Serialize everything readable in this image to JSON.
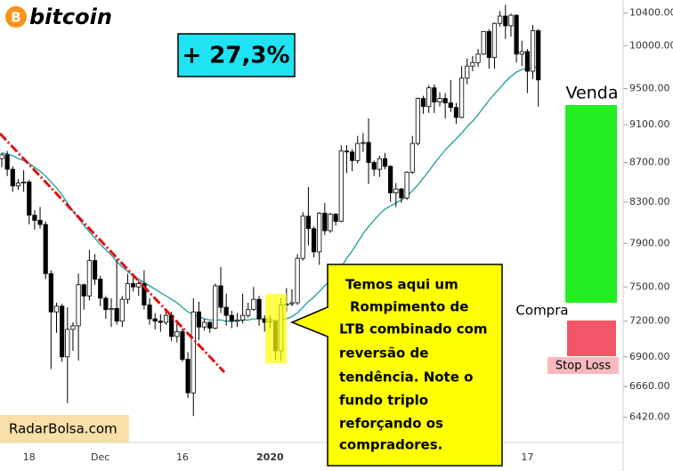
{
  "chart_data": {
    "type": "candlestick",
    "logo": "bitcoin",
    "gain": "+ 27,3%",
    "callout": [
      "Temos aqui um",
      "Rompimento de",
      "LTB combinado com",
      "reversão de",
      "tendência. Note o",
      "fundo triplo",
      "reforçando os",
      "compradores."
    ],
    "sell": "Venda",
    "buy": "Compra",
    "stop": "Stop Loss",
    "source": "RadarBolsa.com",
    "log_scale": true,
    "ylim": [
      6230,
      10560
    ],
    "yticks": [
      {
        "value": 10400,
        "label": "10400.00"
      },
      {
        "value": 10000,
        "label": "10000.00"
      },
      {
        "value": 9500,
        "label": "9500.00"
      },
      {
        "value": 9100,
        "label": "9100.00"
      },
      {
        "value": 8700,
        "label": "8700.00"
      },
      {
        "value": 8300,
        "label": "8300.00"
      },
      {
        "value": 7900,
        "label": "7900.00"
      },
      {
        "value": 7500,
        "label": "7500.00"
      },
      {
        "value": 7200,
        "label": "7200.00"
      },
      {
        "value": 6900,
        "label": "6900.00"
      },
      {
        "value": 6660,
        "label": "6660.00"
      },
      {
        "value": 6420,
        "label": "6420.00"
      }
    ],
    "up_color": "#ffffff",
    "down_color": "#000000",
    "categories": [
      null,
      null,
      null,
      null,
      null,
      "18",
      null,
      null,
      null,
      null,
      null,
      null,
      null,
      null,
      null,
      null,
      null,
      null,
      "Dec",
      null,
      null,
      null,
      null,
      null,
      null,
      null,
      null,
      null,
      null,
      null,
      null,
      null,
      null,
      "16",
      null,
      null,
      null,
      null,
      null,
      null,
      null,
      null,
      null,
      null,
      null,
      null,
      null,
      null,
      null,
      "2020",
      null,
      null,
      null,
      null,
      null,
      null,
      null,
      null,
      null,
      null,
      null,
      null,
      null,
      null,
      null,
      null,
      null,
      null,
      null,
      null,
      null,
      null,
      null,
      null,
      null,
      null,
      null,
      null,
      null,
      null,
      null,
      null,
      null,
      null,
      null,
      null,
      null,
      null,
      null,
      null,
      null,
      null,
      null,
      null,
      null,
      null,
      "17",
      null,
      null
    ],
    "open": [
      8740,
      8780,
      8630,
      8460,
      8490,
      8500,
      8170,
      8120,
      8080,
      7620,
      7280,
      7330,
      6900,
      7130,
      7160,
      7520,
      7420,
      7740,
      7570,
      7400,
      7300,
      7310,
      7200,
      7390,
      7530,
      7500,
      7530,
      7340,
      7220,
      7200,
      7190,
      7250,
      7070,
      7110,
      6880,
      6610,
      7280,
      7150,
      7190,
      7140,
      7510,
      7320,
      7250,
      7200,
      7210,
      7250,
      7300,
      7390,
      7220,
      7190,
      7200,
      6950,
      7340,
      7350,
      7360,
      7760,
      8160,
      8040,
      7820,
      8190,
      8020,
      8180,
      8110,
      8820,
      8810,
      8720,
      8900,
      8910,
      8700,
      8630,
      8740,
      8660,
      8390,
      8430,
      8340,
      8600,
      8900,
      9390,
      9300,
      9510,
      9350,
      9390,
      9340,
      9290,
      9180,
      9620,
      9760,
      9800,
      9900,
      10170,
      9860,
      10270,
      10360,
      10240,
      10370,
      9900,
      9930,
      9700,
      10180
    ],
    "high": [
      8800,
      8820,
      8660,
      8530,
      8620,
      8520,
      8220,
      8250,
      8110,
      7650,
      7360,
      7350,
      7320,
      7190,
      7620,
      7530,
      7840,
      7800,
      7600,
      7420,
      7400,
      7750,
      7420,
      7620,
      7590,
      7560,
      7650,
      7400,
      7270,
      7260,
      7300,
      7280,
      7180,
      7140,
      6940,
      7400,
      7370,
      7220,
      7200,
      7530,
      7680,
      7440,
      7290,
      7270,
      7440,
      7360,
      7500,
      7420,
      7250,
      7250,
      7210,
      7400,
      7490,
      7480,
      7800,
      8200,
      8450,
      8060,
      8200,
      8290,
      8190,
      8190,
      8880,
      8880,
      8840,
      8980,
      9010,
      9170,
      8720,
      8770,
      8800,
      8670,
      8490,
      8440,
      8610,
      8980,
      9400,
      9420,
      9540,
      9550,
      9460,
      9450,
      9600,
      9340,
      9760,
      9850,
      9880,
      9960,
      10170,
      10200,
      10280,
      10420,
      10500,
      10390,
      10380,
      10060,
      9960,
      10250,
      10200
    ],
    "low": [
      8650,
      8560,
      8400,
      8420,
      8400,
      8080,
      8030,
      8040,
      7570,
      6800,
      7100,
      6860,
      6530,
      6950,
      6870,
      7300,
      7380,
      7520,
      7330,
      7220,
      7150,
      7170,
      7150,
      7350,
      7460,
      7420,
      7300,
      7170,
      7130,
      7110,
      7170,
      7030,
      7020,
      6860,
      6570,
      6430,
      7040,
      7120,
      7100,
      7130,
      7270,
      7160,
      7140,
      7150,
      7180,
      7230,
      7290,
      7160,
      7110,
      7140,
      6870,
      6870,
      7280,
      7330,
      7340,
      7740,
      7880,
      7770,
      7700,
      7980,
      8000,
      8070,
      8100,
      8590,
      8610,
      8690,
      8810,
      8480,
      8560,
      8550,
      8630,
      8300,
      8250,
      8290,
      8320,
      8580,
      8880,
      9220,
      9230,
      9230,
      9300,
      9170,
      9240,
      9110,
      9170,
      9550,
      9700,
      9750,
      9890,
      9730,
      9730,
      10230,
      10080,
      10110,
      9800,
      9760,
      9450,
      9610,
      9300
    ],
    "close": [
      8780,
      8630,
      8460,
      8490,
      8500,
      8170,
      8120,
      8080,
      7620,
      7280,
      7330,
      6900,
      7130,
      7160,
      7520,
      7420,
      7740,
      7570,
      7400,
      7300,
      7310,
      7200,
      7390,
      7530,
      7500,
      7530,
      7340,
      7220,
      7200,
      7190,
      7250,
      7070,
      7110,
      6880,
      6610,
      7280,
      7150,
      7190,
      7140,
      7510,
      7320,
      7250,
      7200,
      7210,
      7250,
      7300,
      7390,
      7220,
      7190,
      7200,
      6950,
      7340,
      7350,
      7360,
      7760,
      8160,
      8040,
      7820,
      8190,
      8020,
      8180,
      8110,
      8820,
      8810,
      8720,
      8900,
      8910,
      8700,
      8630,
      8740,
      8660,
      8390,
      8430,
      8340,
      8600,
      8900,
      9390,
      9300,
      9510,
      9350,
      9390,
      9340,
      9290,
      9180,
      9620,
      9760,
      9800,
      9900,
      10170,
      9860,
      10270,
      10360,
      10240,
      10370,
      9900,
      9930,
      9700,
      10180,
      9600
    ],
    "sma": {
      "color": "#1e9c9c",
      "values": [
        8800,
        8790,
        8770,
        8740,
        8720,
        8690,
        8650,
        8610,
        8560,
        8500,
        8440,
        8370,
        8290,
        8210,
        8140,
        8070,
        8010,
        7950,
        7890,
        7840,
        7790,
        7730,
        7680,
        7640,
        7600,
        7570,
        7540,
        7510,
        7480,
        7450,
        7420,
        7390,
        7360,
        7320,
        7280,
        7260,
        7240,
        7220,
        7210,
        7210,
        7210,
        7200,
        7200,
        7200,
        7210,
        7210,
        7220,
        7220,
        7220,
        7220,
        7200,
        7210,
        7220,
        7240,
        7270,
        7320,
        7370,
        7410,
        7460,
        7510,
        7560,
        7600,
        7680,
        7760,
        7830,
        7910,
        7990,
        8060,
        8120,
        8180,
        8230,
        8260,
        8290,
        8320,
        8360,
        8410,
        8470,
        8540,
        8610,
        8690,
        8760,
        8830,
        8890,
        8950,
        9010,
        9080,
        9140,
        9210,
        9290,
        9370,
        9440,
        9510,
        9580,
        9640,
        9690,
        9720,
        9730,
        9740,
        9750
      ]
    }
  }
}
